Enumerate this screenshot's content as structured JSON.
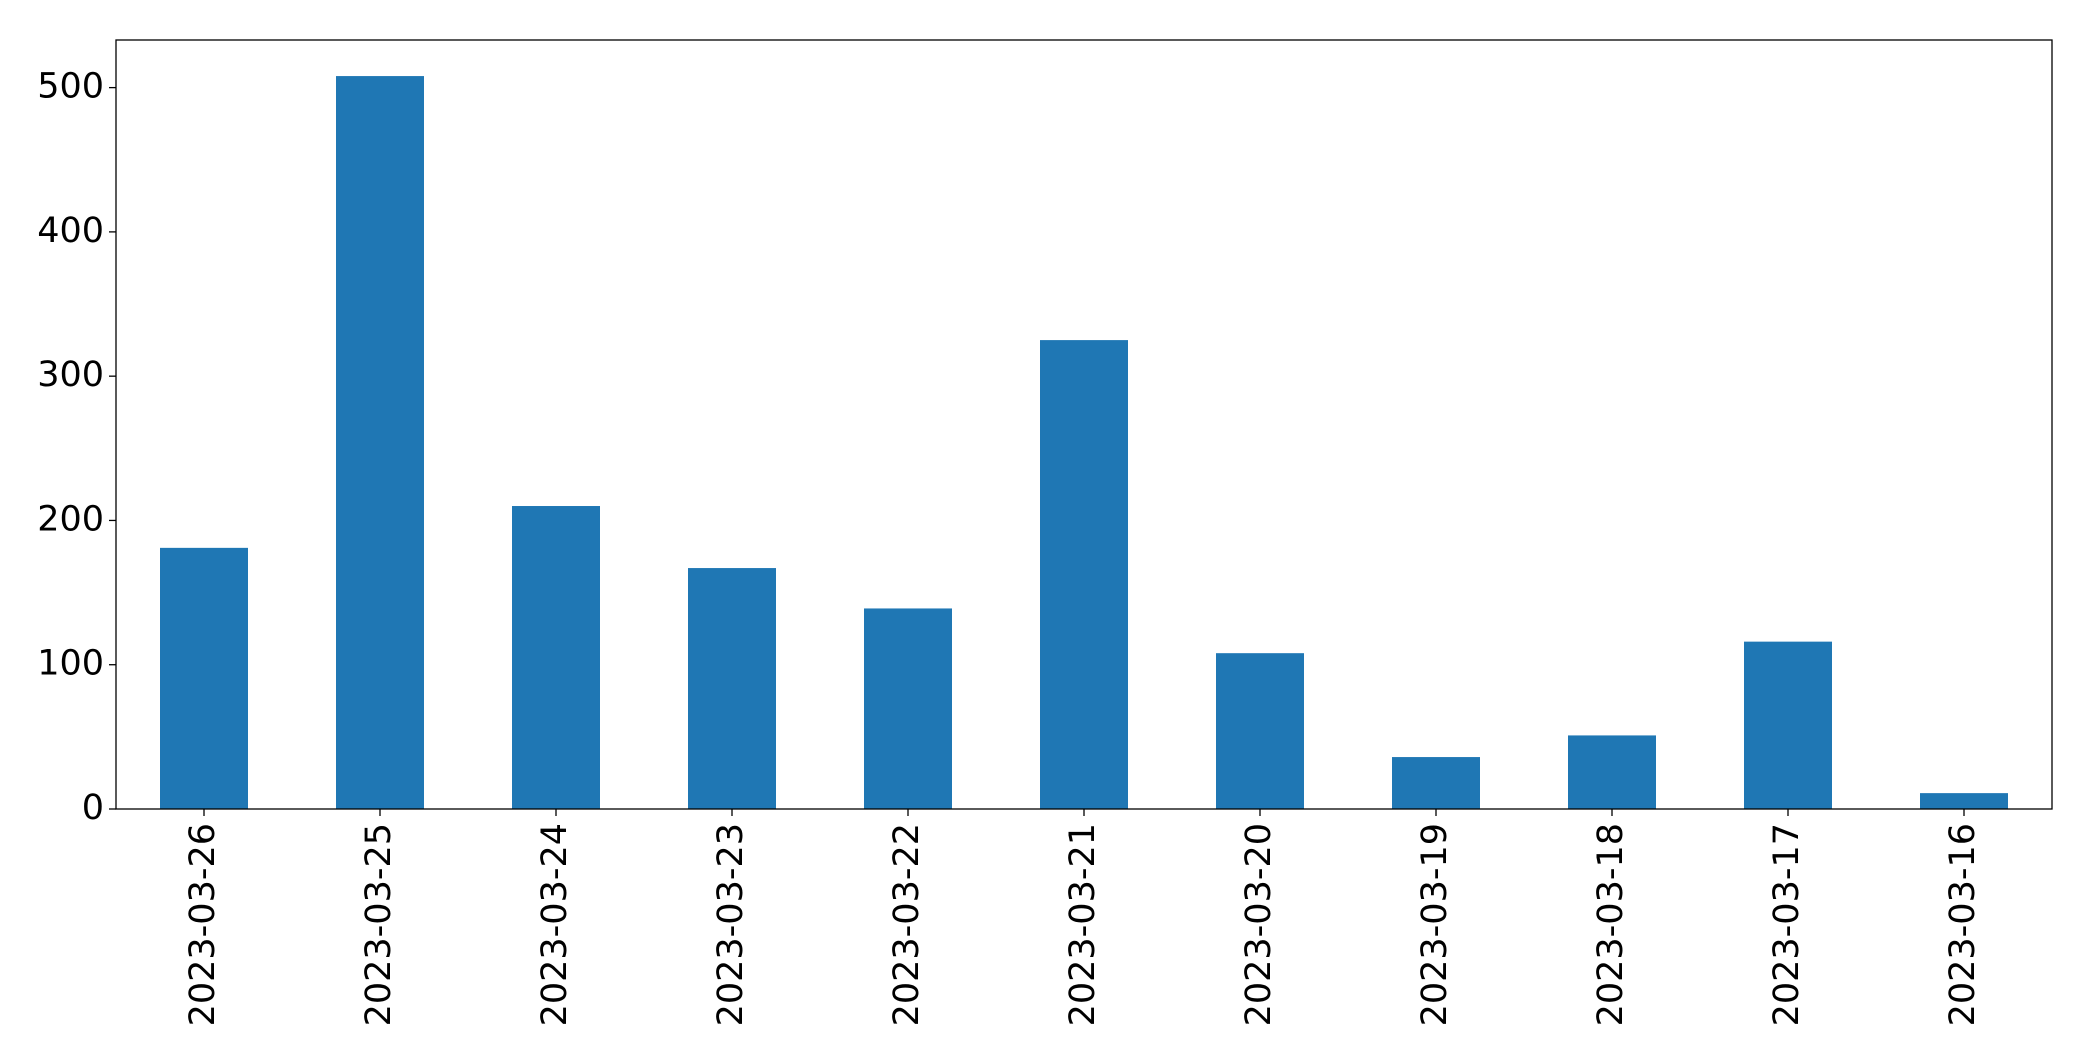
{
  "chart_data": {
    "type": "bar",
    "categories": [
      "2023-03-26",
      "2023-03-25",
      "2023-03-24",
      "2023-03-23",
      "2023-03-22",
      "2023-03-21",
      "2023-03-20",
      "2023-03-19",
      "2023-03-18",
      "2023-03-17",
      "2023-03-16"
    ],
    "values": [
      181,
      508,
      210,
      167,
      139,
      325,
      108,
      36,
      51,
      116,
      11
    ],
    "color": "#1f77b4",
    "ylim": [
      0,
      533
    ],
    "yticks": [
      0,
      100,
      200,
      300,
      400,
      500
    ],
    "grid": false
  }
}
